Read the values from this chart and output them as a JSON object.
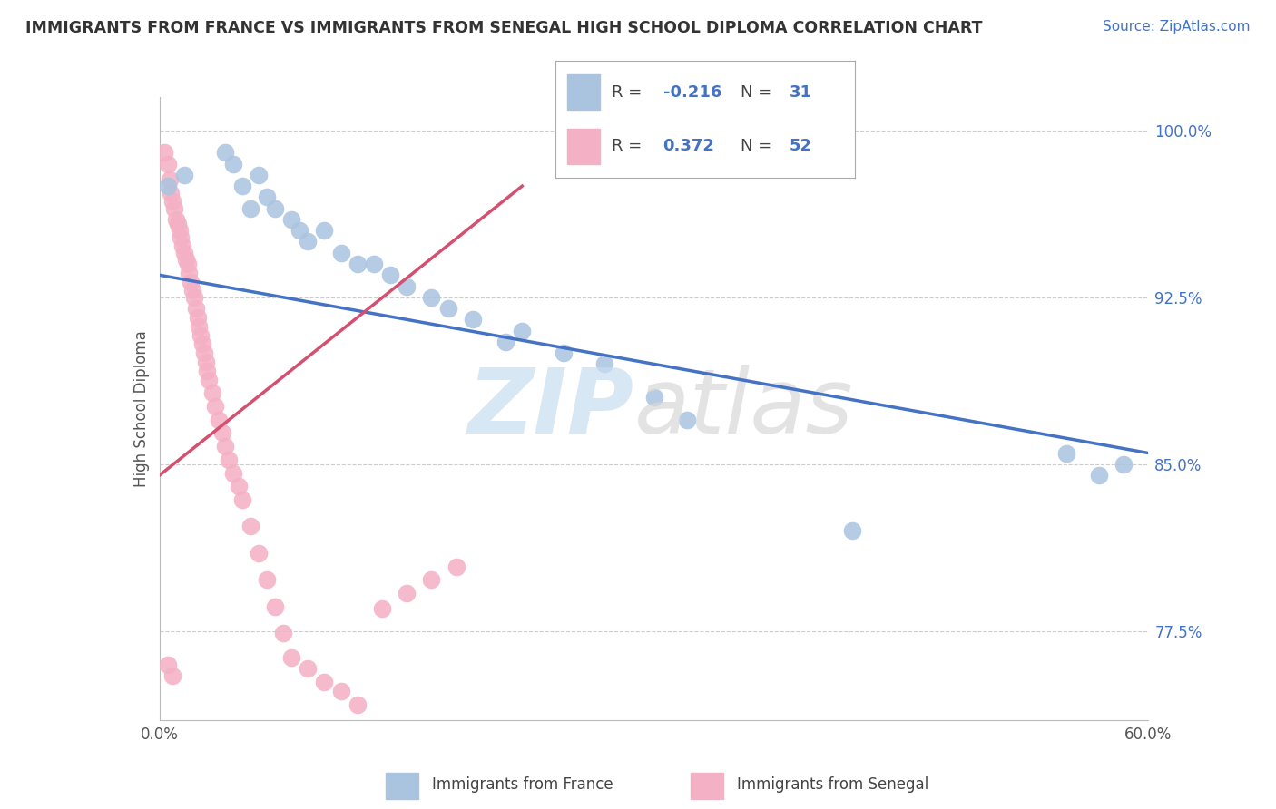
{
  "title": "IMMIGRANTS FROM FRANCE VS IMMIGRANTS FROM SENEGAL HIGH SCHOOL DIPLOMA CORRELATION CHART",
  "source": "Source: ZipAtlas.com",
  "ylabel": "High School Diploma",
  "xlim": [
    0.0,
    0.6
  ],
  "ylim": [
    0.735,
    1.015
  ],
  "xticks": [
    0.0,
    0.1,
    0.2,
    0.3,
    0.4,
    0.5,
    0.6
  ],
  "xticklabels": [
    "0.0%",
    "",
    "",
    "",
    "",
    "",
    "60.0%"
  ],
  "ytick_values": [
    0.775,
    0.85,
    0.925,
    1.0
  ],
  "yticklabels": [
    "77.5%",
    "85.0%",
    "92.5%",
    "100.0%"
  ],
  "france_color": "#aac4e0",
  "senegal_color": "#f4b0c4",
  "france_line_color": "#4472c4",
  "senegal_line_color": "#d45070",
  "france_line_x0": 0.0,
  "france_line_x1": 0.6,
  "france_line_y0": 0.935,
  "france_line_y1": 0.855,
  "senegal_line_x0": 0.0,
  "senegal_line_x1": 0.22,
  "senegal_line_y0": 0.845,
  "senegal_line_y1": 0.975,
  "france_x": [
    0.005,
    0.015,
    0.04,
    0.045,
    0.05,
    0.055,
    0.06,
    0.065,
    0.07,
    0.08,
    0.085,
    0.09,
    0.1,
    0.11,
    0.12,
    0.13,
    0.14,
    0.15,
    0.165,
    0.175,
    0.19,
    0.21,
    0.22,
    0.245,
    0.27,
    0.3,
    0.32,
    0.42,
    0.55,
    0.57,
    0.585
  ],
  "france_y": [
    0.975,
    0.98,
    0.99,
    0.985,
    0.975,
    0.965,
    0.98,
    0.97,
    0.965,
    0.96,
    0.955,
    0.95,
    0.955,
    0.945,
    0.94,
    0.94,
    0.935,
    0.93,
    0.925,
    0.92,
    0.915,
    0.905,
    0.91,
    0.9,
    0.895,
    0.88,
    0.87,
    0.82,
    0.855,
    0.845,
    0.85
  ],
  "senegal_x": [
    0.003,
    0.005,
    0.006,
    0.007,
    0.008,
    0.009,
    0.01,
    0.011,
    0.012,
    0.013,
    0.014,
    0.015,
    0.016,
    0.017,
    0.018,
    0.019,
    0.02,
    0.021,
    0.022,
    0.023,
    0.024,
    0.025,
    0.026,
    0.027,
    0.028,
    0.029,
    0.03,
    0.032,
    0.034,
    0.036,
    0.038,
    0.04,
    0.042,
    0.045,
    0.048,
    0.05,
    0.055,
    0.06,
    0.065,
    0.07,
    0.075,
    0.08,
    0.09,
    0.1,
    0.11,
    0.12,
    0.135,
    0.15,
    0.165,
    0.18,
    0.005,
    0.008
  ],
  "senegal_y": [
    0.99,
    0.985,
    0.978,
    0.972,
    0.968,
    0.965,
    0.96,
    0.958,
    0.955,
    0.952,
    0.948,
    0.945,
    0.942,
    0.94,
    0.936,
    0.932,
    0.928,
    0.925,
    0.92,
    0.916,
    0.912,
    0.908,
    0.904,
    0.9,
    0.896,
    0.892,
    0.888,
    0.882,
    0.876,
    0.87,
    0.864,
    0.858,
    0.852,
    0.846,
    0.84,
    0.834,
    0.822,
    0.81,
    0.798,
    0.786,
    0.774,
    0.763,
    0.758,
    0.752,
    0.748,
    0.742,
    0.785,
    0.792,
    0.798,
    0.804,
    0.76,
    0.755
  ]
}
